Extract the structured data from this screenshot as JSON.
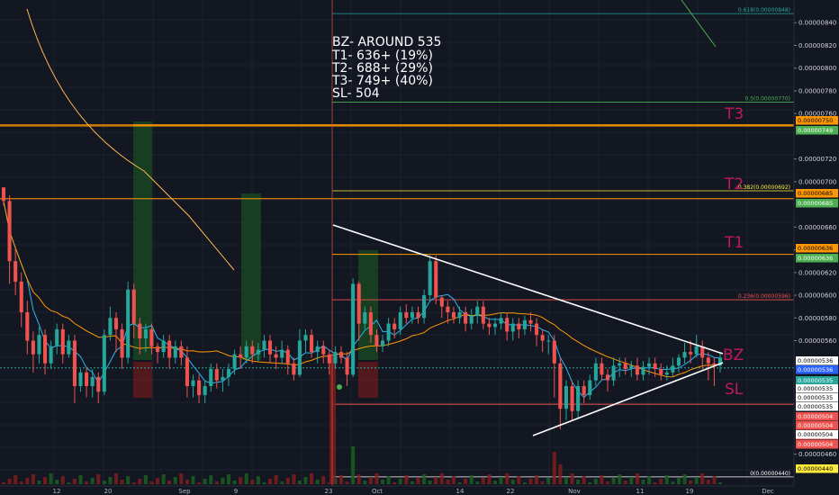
{
  "chart_data": {
    "type": "candlestick",
    "ylim": [
      4.32e-06,
      8.6e-06
    ],
    "price_ticks": [
      "0.00000840",
      "0.00000820",
      "0.00000800",
      "0.00000780",
      "0.00000760",
      "0.00000720",
      "0.00000700",
      "0.00000660",
      "0.00000640",
      "0.00000620",
      "0.00000600",
      "0.00000580",
      "0.00000560",
      "0.00000460"
    ],
    "x_ticks": [
      "12",
      "20",
      "Sep",
      "9",
      "23",
      "Oct",
      "14",
      "22",
      "Nov",
      "11",
      "19",
      "Dec"
    ],
    "annotation_lines": [
      "BZ- AROUND 535",
      "T1- 636+ (19%)",
      "T2- 688+ (29%)",
      "T3- 749+ (40%)",
      "SL- 504"
    ],
    "target_labels": [
      {
        "text": "T3",
        "value": 7.5e-06
      },
      {
        "text": "T2",
        "value": 6.91e-06
      },
      {
        "text": "T1",
        "value": 6.38e-06
      },
      {
        "text": "BZ",
        "value": 5.43e-06
      },
      {
        "text": "SL",
        "value": 5.21e-06
      }
    ],
    "fib_levels": [
      {
        "text": "0.618(0.00000848)",
        "value": 8.48e-06,
        "color": "#26a69a"
      },
      {
        "text": "0.5(0.00000770)",
        "value": 7.7e-06,
        "color": "#4caf50"
      },
      {
        "text": "0.382(0.00000692)",
        "value": 6.92e-06,
        "color": "#ffeb3b"
      },
      {
        "text": "0.236(0.00000596)",
        "value": 5.96e-06,
        "color": "#ef5350"
      },
      {
        "text": "0(0.00000440)",
        "value": 4.4e-06,
        "color": "#ffffff"
      }
    ],
    "horizontal_lines": [
      {
        "value": 7.5e-06,
        "color": "#ff9800"
      },
      {
        "value": 7.49e-06,
        "color": "#ff9800"
      },
      {
        "value": 6.85e-06,
        "color": "#ff9800"
      },
      {
        "value": 6.36e-06,
        "color": "#ff9800"
      },
      {
        "value": 5.04e-06,
        "color": "#ef5350"
      },
      {
        "value": 5.36e-06,
        "color": "#26a69a"
      }
    ],
    "price_tags": [
      {
        "text": "0.00000750",
        "value": 7.5e-06,
        "bg": "#ff9800",
        "fg": "#000000"
      },
      {
        "text": "0.00000749",
        "value": 7.49e-06,
        "bg": "#4caf50",
        "fg": "#ffffff"
      },
      {
        "text": "0.00000685",
        "value": 6.85e-06,
        "bg": "#ff9800",
        "fg": "#000000"
      },
      {
        "text": "0.00000685",
        "value": 6.85e-06,
        "bg": "#4caf50",
        "fg": "#ffffff"
      },
      {
        "text": "0.00000636",
        "value": 6.36e-06,
        "bg": "#ff9800",
        "fg": "#000000"
      },
      {
        "text": "0.00000636",
        "value": 6.36e-06,
        "bg": "#4caf50",
        "fg": "#ffffff"
      },
      {
        "text": "0.00000536",
        "value": 5.36e-06,
        "bg": "#ffffff",
        "fg": "#000000"
      },
      {
        "text": "0.00000536",
        "value": 5.36e-06,
        "bg": "#2962ff",
        "fg": "#ffffff"
      },
      {
        "text": "0.00000535",
        "value": 5.35e-06,
        "bg": "#26a69a",
        "fg": "#ffffff"
      },
      {
        "text": "0.00000535",
        "value": 5.35e-06,
        "bg": "#ffffff",
        "fg": "#000000"
      },
      {
        "text": "0.00000535",
        "value": 5.35e-06,
        "bg": "#ffffff",
        "fg": "#000000"
      },
      {
        "text": "0.00000535",
        "value": 5.35e-06,
        "bg": "#ffffff",
        "fg": "#000000"
      },
      {
        "text": "0.00000535",
        "value": 5.35e-06,
        "bg": "#ffffff",
        "fg": "#000000"
      },
      {
        "text": "0.00000504",
        "value": 5.04e-06,
        "bg": "#ef5350",
        "fg": "#ffffff"
      },
      {
        "text": "0.00000504",
        "value": 5.04e-06,
        "bg": "#ef5350",
        "fg": "#ffffff"
      },
      {
        "text": "0.00000504",
        "value": 5.04e-06,
        "bg": "#ef5350",
        "fg": "#ffffff"
      },
      {
        "text": "0.00000504",
        "value": 5.04e-06,
        "bg": "#ef5350",
        "fg": "#ffffff"
      },
      {
        "text": "0.00000504",
        "value": 5.04e-06,
        "bg": "#ffffff",
        "fg": "#000000"
      },
      {
        "text": "0.00000440",
        "value": 4.4e-06,
        "bg": "#ffeb3b",
        "fg": "#000000"
      }
    ],
    "candles": [
      [
        695,
        683,
        692,
        679
      ],
      [
        683,
        630,
        688,
        610
      ],
      [
        630,
        612,
        642,
        600
      ],
      [
        612,
        585,
        620,
        572
      ],
      [
        585,
        560,
        595,
        548
      ],
      [
        560,
        548,
        568,
        532
      ],
      [
        548,
        565,
        572,
        540
      ],
      [
        565,
        540,
        570,
        530
      ],
      [
        540,
        555,
        560,
        535
      ],
      [
        555,
        570,
        575,
        548
      ],
      [
        570,
        548,
        575,
        540
      ],
      [
        548,
        560,
        565,
        545
      ],
      [
        560,
        520,
        565,
        505
      ],
      [
        520,
        532,
        535,
        515
      ],
      [
        532,
        520,
        537,
        510
      ],
      [
        520,
        528,
        535,
        510
      ],
      [
        528,
        515,
        532,
        505
      ],
      [
        515,
        565,
        570,
        512
      ],
      [
        565,
        580,
        590,
        560
      ],
      [
        580,
        570,
        585,
        550
      ],
      [
        570,
        545,
        575,
        535
      ],
      [
        545,
        605,
        612,
        540
      ],
      [
        605,
        575,
        610,
        562
      ],
      [
        575,
        562,
        580,
        548
      ],
      [
        562,
        570,
        575,
        550
      ],
      [
        570,
        555,
        575,
        548
      ],
      [
        555,
        550,
        558,
        540
      ],
      [
        550,
        560,
        565,
        545
      ],
      [
        560,
        545,
        565,
        535
      ],
      [
        545,
        555,
        560,
        540
      ],
      [
        555,
        545,
        560,
        538
      ],
      [
        545,
        520,
        555,
        510
      ],
      [
        520,
        525,
        530,
        510
      ],
      [
        525,
        512,
        530,
        505
      ],
      [
        512,
        520,
        525,
        505
      ],
      [
        520,
        535,
        540,
        515
      ],
      [
        535,
        525,
        540,
        518
      ],
      [
        525,
        528,
        535,
        515
      ],
      [
        528,
        535,
        540,
        520
      ],
      [
        535,
        548,
        552,
        530
      ],
      [
        548,
        545,
        555,
        535
      ],
      [
        545,
        555,
        560,
        540
      ],
      [
        555,
        548,
        560,
        540
      ],
      [
        548,
        552,
        558,
        542
      ],
      [
        552,
        560,
        565,
        545
      ],
      [
        560,
        548,
        565,
        540
      ],
      [
        548,
        545,
        555,
        535
      ],
      [
        545,
        552,
        560,
        540
      ],
      [
        552,
        540,
        556,
        530
      ],
      [
        540,
        530,
        545,
        525
      ],
      [
        530,
        560,
        570,
        528
      ],
      [
        560,
        565,
        570,
        550
      ],
      [
        565,
        550,
        570,
        545
      ],
      [
        550,
        555,
        560,
        540
      ],
      [
        555,
        548,
        560,
        540
      ],
      [
        548,
        540,
        552,
        530
      ],
      [
        540,
        550,
        555,
        535
      ],
      [
        550,
        545,
        555,
        540
      ],
      [
        545,
        530,
        550,
        520
      ],
      [
        530,
        610,
        615,
        528
      ],
      [
        610,
        575,
        612,
        560
      ],
      [
        575,
        585,
        590,
        570
      ],
      [
        585,
        565,
        590,
        558
      ],
      [
        565,
        555,
        570,
        550
      ],
      [
        555,
        560,
        565,
        550
      ],
      [
        560,
        575,
        580,
        555
      ],
      [
        575,
        570,
        580,
        562
      ],
      [
        570,
        585,
        590,
        565
      ],
      [
        585,
        580,
        592,
        575
      ],
      [
        580,
        585,
        590,
        575
      ],
      [
        585,
        580,
        590,
        575
      ],
      [
        580,
        600,
        605,
        575
      ],
      [
        600,
        630,
        635,
        595
      ],
      [
        630,
        598,
        635,
        592
      ],
      [
        598,
        590,
        600,
        580
      ],
      [
        590,
        585,
        595,
        575
      ],
      [
        585,
        580,
        590,
        575
      ],
      [
        580,
        585,
        590,
        575
      ],
      [
        585,
        575,
        590,
        568
      ],
      [
        575,
        582,
        588,
        570
      ],
      [
        582,
        590,
        595,
        575
      ],
      [
        590,
        575,
        595,
        570
      ],
      [
        575,
        572,
        580,
        565
      ],
      [
        572,
        575,
        580,
        565
      ],
      [
        575,
        580,
        585,
        570
      ],
      [
        580,
        568,
        585,
        560
      ],
      [
        568,
        575,
        580,
        560
      ],
      [
        575,
        570,
        580,
        562
      ],
      [
        570,
        578,
        582,
        565
      ],
      [
        578,
        575,
        585,
        568
      ],
      [
        575,
        565,
        580,
        555
      ],
      [
        565,
        560,
        570,
        550
      ],
      [
        560,
        560,
        565,
        548
      ],
      [
        560,
        540,
        565,
        510
      ],
      [
        540,
        500,
        545,
        482
      ],
      [
        500,
        520,
        525,
        490
      ],
      [
        520,
        498,
        525,
        490
      ],
      [
        498,
        520,
        525,
        492
      ],
      [
        520,
        512,
        525,
        505
      ],
      [
        512,
        525,
        530,
        508
      ],
      [
        525,
        540,
        545,
        520
      ],
      [
        540,
        530,
        545,
        525
      ],
      [
        530,
        525,
        535,
        515
      ],
      [
        525,
        538,
        545,
        520
      ],
      [
        538,
        540,
        545,
        528
      ],
      [
        540,
        535,
        545,
        530
      ],
      [
        535,
        538,
        542,
        528
      ],
      [
        538,
        530,
        545,
        525
      ],
      [
        530,
        537,
        542,
        525
      ],
      [
        537,
        540,
        545,
        530
      ],
      [
        540,
        535,
        545,
        528
      ],
      [
        535,
        530,
        540,
        525
      ],
      [
        530,
        532,
        538,
        525
      ],
      [
        532,
        538,
        545,
        528
      ],
      [
        538,
        545,
        548,
        532
      ],
      [
        545,
        550,
        558,
        540
      ],
      [
        550,
        548,
        560,
        540
      ],
      [
        548,
        555,
        565,
        545
      ],
      [
        555,
        545,
        560,
        535
      ],
      [
        545,
        540,
        550,
        525
      ],
      [
        540,
        538,
        545,
        520
      ],
      [
        538,
        545,
        550,
        532
      ]
    ]
  }
}
